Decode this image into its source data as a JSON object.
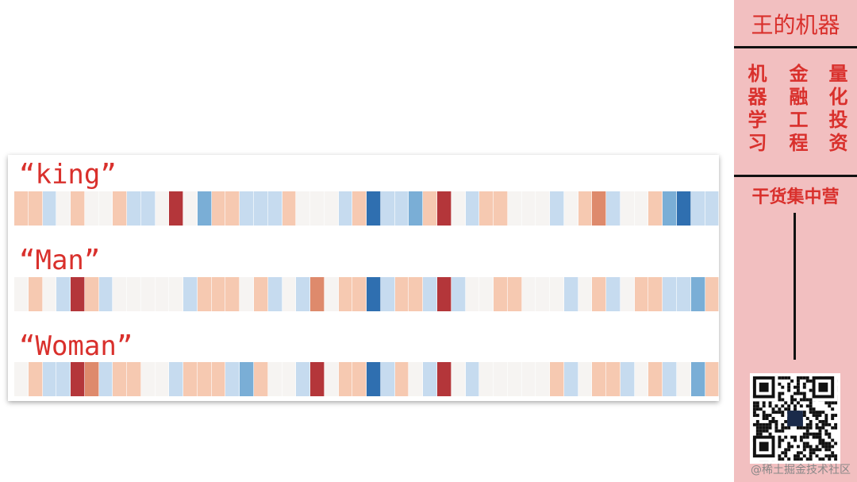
{
  "heatmap": {
    "rows": [
      {
        "label": "“king”",
        "values": [
          1,
          1,
          -1,
          0,
          1,
          0,
          0,
          1,
          -1,
          -1,
          0,
          3,
          0,
          -2,
          1,
          1,
          -1,
          -1,
          -1,
          1,
          0,
          0,
          0,
          -1,
          1,
          -3,
          -1,
          -1,
          -2,
          1,
          3,
          0,
          -1,
          1,
          1,
          0,
          0,
          0,
          -1,
          0,
          1,
          2,
          -1,
          0,
          0,
          1,
          -2,
          -3,
          -1,
          -1
        ]
      },
      {
        "label": "“Man”",
        "values": [
          0,
          1,
          0,
          -1,
          3,
          1,
          -1,
          0,
          0,
          0,
          0,
          0,
          -1,
          1,
          1,
          1,
          0,
          1,
          -1,
          0,
          -1,
          2,
          0,
          1,
          1,
          -3,
          -1,
          1,
          1,
          -1,
          3,
          -1,
          0,
          0,
          1,
          1,
          0,
          0,
          0,
          -1,
          0,
          1,
          -1,
          0,
          1,
          1,
          -1,
          -1,
          -2,
          1
        ]
      },
      {
        "label": "“Woman”",
        "values": [
          0,
          1,
          -1,
          -1,
          3,
          2,
          -1,
          1,
          1,
          0,
          0,
          -1,
          1,
          1,
          1,
          -1,
          -2,
          1,
          0,
          0,
          -1,
          3,
          0,
          1,
          1,
          -3,
          -1,
          1,
          0,
          -1,
          3,
          0,
          -1,
          0,
          0,
          0,
          0,
          0,
          1,
          -1,
          0,
          1,
          1,
          -1,
          0,
          1,
          -1,
          0,
          -2,
          1
        ]
      }
    ],
    "palette": {
      "-3": "#2f6fb0",
      "-2": "#7aaed6",
      "-1": "#c6dbef",
      "0": "#f6f4f2",
      "1": "#f6c9b1",
      "2": "#de8a6c",
      "3": "#b4363a"
    }
  },
  "sidebar": {
    "title": "王的机器",
    "columns": [
      "机器学习",
      "金融工程",
      "量化投资"
    ],
    "slogan": "干货集中营"
  },
  "watermark": "@稀土掘金技术社区"
}
